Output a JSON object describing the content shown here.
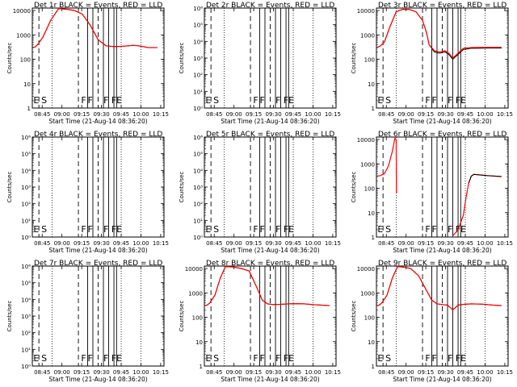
{
  "chart_data": [
    {
      "type": "line",
      "title": "Det 1r BLACK = Events, RED = LLD",
      "ylabel": "Counts/sec",
      "xlabel": "Start Time (21-Aug-14 08:36:20)",
      "x_ticks": [
        "08:45",
        "09:00",
        "09:15",
        "09:30",
        "09:45",
        "10:00",
        "10:15"
      ],
      "y_ticks": [
        "1",
        "10",
        "100",
        "1000",
        "10000"
      ],
      "y_log_range": [
        0,
        4.1
      ],
      "flags": [
        "E",
        "S",
        "F",
        "F",
        "F",
        "F",
        "E"
      ],
      "series": [
        {
          "color": "#000000",
          "x": [
            0.5,
            2,
            4,
            8,
            14,
            20,
            26,
            32,
            38,
            44,
            50,
            56,
            62,
            68,
            70,
            72,
            76,
            80,
            84,
            88,
            95
          ],
          "y": [
            2.49,
            2.5,
            2.6,
            2.9,
            3.6,
            4.08,
            4.05,
            4.0,
            3.85,
            3.4,
            2.8,
            2.55,
            2.52,
            2.53,
            2.54,
            2.55,
            2.57,
            2.56,
            2.52,
            2.48,
            2.48
          ]
        },
        {
          "color": "#ff0000",
          "x": [
            0.5,
            2,
            4,
            8,
            14,
            20,
            26,
            32,
            38,
            44,
            50,
            56,
            62,
            68,
            70,
            72,
            76,
            80,
            84,
            88,
            95
          ],
          "y": [
            2.49,
            2.5,
            2.6,
            2.9,
            3.6,
            4.08,
            4.05,
            4.0,
            3.85,
            3.4,
            2.8,
            2.55,
            2.52,
            2.53,
            2.54,
            2.55,
            2.57,
            2.56,
            2.52,
            2.48,
            2.48
          ]
        }
      ]
    },
    {
      "type": "line",
      "title": "Det 2r BLACK = Events, RED = LLD",
      "ylabel": "Counts/sec",
      "xlabel": "Start Time (21-Aug-14 08:36:20)",
      "x_ticks": [
        "08:45",
        "09:00",
        "09:15",
        "09:30",
        "09:45",
        "10:00",
        "10:15"
      ],
      "y_ticks": [
        "10⁰",
        "10¹",
        "10²",
        "10³",
        "10⁴",
        "10⁵",
        "10⁶"
      ],
      "y_log_range": [
        0,
        6
      ],
      "flags": [
        "E",
        "S",
        "F",
        "F",
        "F",
        "F",
        "E"
      ],
      "series": []
    },
    {
      "type": "line",
      "title": "Det 3r BLACK = Events, RED = LLD",
      "ylabel": "Counts/sec",
      "xlabel": "Start Time (21-Aug-14 08:36:20)",
      "x_ticks": [
        "08:45",
        "09:00",
        "09:15",
        "09:30",
        "09:45",
        "10:00",
        "10:15"
      ],
      "y_ticks": [
        "1",
        "10",
        "100",
        "1000",
        "10000"
      ],
      "y_log_range": [
        0,
        4.1
      ],
      "flags": [
        "E",
        "S",
        "F",
        "F",
        "F",
        "F",
        "E"
      ],
      "series": [
        {
          "color": "#000000",
          "x": [
            0.5,
            3,
            6,
            10,
            15,
            20,
            25,
            30,
            35,
            38,
            40,
            44,
            48,
            52,
            55,
            58,
            62,
            66,
            72,
            78,
            84,
            95
          ],
          "y": [
            2.48,
            2.55,
            2.7,
            3.3,
            3.95,
            4.05,
            4.04,
            3.95,
            3.6,
            3.1,
            2.6,
            2.3,
            2.25,
            2.3,
            2.2,
            2.0,
            2.2,
            2.4,
            2.45,
            2.45,
            2.46,
            2.46
          ]
        },
        {
          "color": "#ff0000",
          "x": [
            0.5,
            3,
            6,
            10,
            15,
            20,
            25,
            30,
            35,
            38,
            40,
            44,
            48,
            52,
            55,
            58,
            62,
            66,
            72,
            78,
            84,
            95
          ],
          "y": [
            2.48,
            2.55,
            2.7,
            3.3,
            3.95,
            4.05,
            4.04,
            3.95,
            3.6,
            3.1,
            2.6,
            2.35,
            2.3,
            2.35,
            2.25,
            2.05,
            2.25,
            2.45,
            2.48,
            2.49,
            2.49,
            2.49
          ]
        }
      ]
    },
    {
      "type": "line",
      "title": "Det 4r BLACK = Events, RED = LLD",
      "ylabel": "Counts/sec",
      "xlabel": "Start Time (21-Aug-14 08:36:20)",
      "x_ticks": [
        "08:45",
        "09:00",
        "09:15",
        "09:30",
        "09:45",
        "10:00",
        "10:15"
      ],
      "y_ticks": [
        "10⁰",
        "10¹",
        "10²",
        "10³",
        "10⁴",
        "10⁵",
        "10⁶"
      ],
      "y_log_range": [
        0,
        6
      ],
      "flags": [
        "E",
        "S",
        "F",
        "F",
        "F",
        "F",
        "E"
      ],
      "series": []
    },
    {
      "type": "line",
      "title": "Det 5r BLACK = Events, RED = LLD",
      "ylabel": "Counts/sec",
      "xlabel": "Start Time (21-Aug-14 08:36:20)",
      "x_ticks": [
        "08:45",
        "09:00",
        "09:15",
        "09:30",
        "09:45",
        "10:00",
        "10:15"
      ],
      "y_ticks": [
        "10⁰",
        "10¹",
        "10²",
        "10³",
        "10⁴",
        "10⁵",
        "10⁶"
      ],
      "y_log_range": [
        0,
        6
      ],
      "flags": [
        "E",
        "S",
        "F",
        "F",
        "F",
        "F",
        "E"
      ],
      "series": []
    },
    {
      "type": "line",
      "title": "Det 6r BLACK = Events, RED = LLD",
      "ylabel": "Counts/sec",
      "xlabel": "Start Time (21-Aug-14 08:36:20)",
      "x_ticks": [
        "08:45",
        "09:00",
        "09:15",
        "09:30",
        "09:45",
        "10:00",
        "10:15"
      ],
      "y_ticks": [
        "1",
        "10",
        "100",
        "1000",
        "10000"
      ],
      "y_log_range": [
        0,
        4.1
      ],
      "flags": [
        "E",
        "S",
        "F",
        "F",
        "F",
        "F",
        "E"
      ],
      "series": [
        {
          "color": "#ff0000",
          "x": [
            0.5,
            3,
            6,
            9,
            12,
            14,
            15,
            15.2
          ],
          "y": [
            2.5,
            2.52,
            2.6,
            2.9,
            3.5,
            4.05,
            4.0,
            1.8
          ]
        },
        {
          "color": "#ff0000",
          "x": [
            58,
            62,
            66,
            68,
            70,
            72,
            74,
            78,
            84,
            95
          ],
          "y": [
            0.05,
            0.3,
            0.9,
            1.6,
            2.2,
            2.5,
            2.57,
            2.55,
            2.52,
            2.48
          ]
        },
        {
          "color": "#000000",
          "x": [
            70,
            72,
            74,
            78,
            84,
            95
          ],
          "y": [
            2.2,
            2.5,
            2.57,
            2.55,
            2.52,
            2.48
          ]
        }
      ]
    },
    {
      "type": "line",
      "title": "Det 7r BLACK = Events, RED = LLD",
      "ylabel": "Counts/sec",
      "xlabel": "Start Time (21-Aug-14 08:36:20)",
      "x_ticks": [
        "08:45",
        "09:00",
        "09:15",
        "09:30",
        "09:45",
        "10:00",
        "10:15"
      ],
      "y_ticks": [
        "10⁰",
        "10¹",
        "10²",
        "10³",
        "10⁴",
        "10⁵",
        "10⁶"
      ],
      "y_log_range": [
        0,
        6
      ],
      "flags": [
        "E",
        "S",
        "F",
        "F",
        "F",
        "F",
        "E"
      ],
      "series": []
    },
    {
      "type": "line",
      "title": "Det 8r BLACK = Events, RED = LLD",
      "ylabel": "Counts/sec",
      "xlabel": "Start Time (21-Aug-14 08:36:20)",
      "x_ticks": [
        "08:45",
        "09:00",
        "09:15",
        "09:30",
        "09:45",
        "10:00",
        "10:15"
      ],
      "y_ticks": [
        "1",
        "10",
        "100",
        "1000",
        "10000"
      ],
      "y_log_range": [
        0,
        4.1
      ],
      "flags": [
        "E",
        "S",
        "F",
        "F",
        "F",
        "F",
        "E"
      ],
      "series": [
        {
          "color": "#000000",
          "x": [
            0.5,
            2,
            4,
            8,
            12,
            16,
            22,
            28,
            34,
            40,
            44,
            48,
            52,
            58,
            64,
            70,
            76,
            82,
            88,
            95
          ],
          "y": [
            2.48,
            2.5,
            2.58,
            2.9,
            3.6,
            4.08,
            4.06,
            4.0,
            3.9,
            3.2,
            2.7,
            2.55,
            2.52,
            2.53,
            2.55,
            2.56,
            2.55,
            2.52,
            2.5,
            2.48
          ]
        },
        {
          "color": "#ff0000",
          "x": [
            0.5,
            2,
            4,
            8,
            12,
            16,
            22,
            28,
            34,
            40,
            44,
            48,
            52,
            58,
            64,
            70,
            76,
            82,
            88,
            95
          ],
          "y": [
            2.48,
            2.5,
            2.58,
            2.9,
            3.6,
            4.08,
            4.06,
            4.0,
            3.9,
            3.2,
            2.7,
            2.55,
            2.52,
            2.53,
            2.55,
            2.56,
            2.55,
            2.52,
            2.5,
            2.48
          ]
        }
      ]
    },
    {
      "type": "line",
      "title": "Det 9r BLACK = Events, RED = LLD",
      "ylabel": "Counts/sec",
      "xlabel": "Start Time (21-Aug-14 08:36:20)",
      "x_ticks": [
        "08:45",
        "09:00",
        "09:15",
        "09:30",
        "09:45",
        "10:00",
        "10:15"
      ],
      "y_ticks": [
        "1",
        "10",
        "100",
        "1000",
        "10000"
      ],
      "y_log_range": [
        0,
        4.1
      ],
      "flags": [
        "E",
        "S",
        "F",
        "F",
        "F",
        "F",
        "E"
      ],
      "series": [
        {
          "color": "#000000",
          "x": [
            0.5,
            2,
            4,
            8,
            12,
            16,
            20,
            26,
            32,
            38,
            42,
            46,
            50,
            54,
            58,
            62,
            66,
            72,
            80,
            88,
            95
          ],
          "y": [
            2.48,
            2.5,
            2.58,
            2.9,
            3.6,
            4.08,
            4.06,
            4.0,
            3.7,
            3.1,
            2.7,
            2.55,
            2.52,
            2.5,
            2.3,
            2.5,
            2.53,
            2.55,
            2.54,
            2.5,
            2.48
          ]
        },
        {
          "color": "#ff0000",
          "x": [
            0.5,
            2,
            4,
            8,
            12,
            16,
            20,
            26,
            32,
            38,
            42,
            46,
            50,
            54,
            58,
            62,
            66,
            72,
            80,
            88,
            95
          ],
          "y": [
            2.48,
            2.5,
            2.58,
            2.9,
            3.6,
            4.08,
            4.06,
            4.0,
            3.7,
            3.1,
            2.7,
            2.55,
            2.52,
            2.5,
            2.3,
            2.5,
            2.53,
            2.55,
            2.54,
            2.5,
            2.48
          ]
        }
      ]
    }
  ]
}
